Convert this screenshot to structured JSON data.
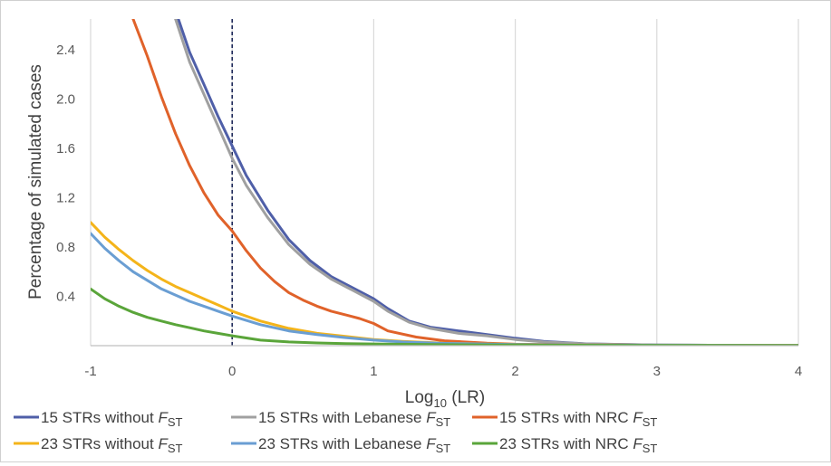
{
  "chart_data": {
    "type": "line",
    "title": "",
    "xlabel": {
      "base": "Log",
      "sub": "10",
      "rest": " (LR)"
    },
    "ylabel": "Percentage of simulated cases",
    "xlim": [
      -1,
      4
    ],
    "ylim": [
      0,
      2.65
    ],
    "x_ticks": [
      "-1",
      "0",
      "1",
      "2",
      "3",
      "4"
    ],
    "y_ticks": [
      "0.4",
      "0.8",
      "1.2",
      "1.6",
      "2.0",
      "2.4"
    ],
    "grid": "vertical",
    "reference_line": {
      "x": 0,
      "style": "dashed"
    },
    "series": [
      {
        "name": "15 STRs without F_ST",
        "label": "15 STRs without ",
        "fst_base": "F",
        "fst_sub": "ST",
        "color": "#4f5fa8",
        "x": [
          -0.38,
          -0.3,
          -0.2,
          -0.1,
          0,
          0.1,
          0.25,
          0.4,
          0.55,
          0.7,
          0.85,
          1.0,
          1.1,
          1.25,
          1.4,
          1.6,
          1.8,
          2.0,
          2.2,
          2.5,
          3.0,
          3.5,
          4.0
        ],
        "y": [
          2.65,
          2.38,
          2.12,
          1.86,
          1.62,
          1.38,
          1.1,
          0.86,
          0.69,
          0.56,
          0.47,
          0.38,
          0.3,
          0.2,
          0.15,
          0.12,
          0.09,
          0.06,
          0.035,
          0.015,
          0.006,
          0.003,
          0.002
        ]
      },
      {
        "name": "15 STRs with Lebanese F_ST",
        "label": "15 STRs with Lebanese ",
        "fst_base": "F",
        "fst_sub": "ST",
        "color": "#a0a0a0",
        "x": [
          -0.4,
          -0.3,
          -0.2,
          -0.1,
          0,
          0.1,
          0.25,
          0.4,
          0.55,
          0.7,
          0.85,
          1.0,
          1.1,
          1.25,
          1.4,
          1.6,
          1.8,
          2.0,
          2.2,
          2.5,
          3.0,
          3.5,
          4.0
        ],
        "y": [
          2.65,
          2.3,
          2.04,
          1.78,
          1.52,
          1.3,
          1.04,
          0.82,
          0.66,
          0.54,
          0.45,
          0.36,
          0.28,
          0.19,
          0.14,
          0.1,
          0.08,
          0.05,
          0.03,
          0.014,
          0.006,
          0.003,
          0.002
        ]
      },
      {
        "name": "15 STRs with NRC F_ST",
        "label": "15 STRs with NRC ",
        "fst_base": "F",
        "fst_sub": "ST",
        "color": "#e0622a",
        "x": [
          -0.7,
          -0.6,
          -0.5,
          -0.4,
          -0.3,
          -0.2,
          -0.1,
          0,
          0.1,
          0.2,
          0.3,
          0.4,
          0.5,
          0.6,
          0.7,
          0.8,
          0.9,
          1.0,
          1.1,
          1.3,
          1.5,
          1.8,
          2.0,
          2.3,
          2.6,
          3.0,
          3.5,
          4.0
        ],
        "y": [
          2.65,
          2.35,
          2.02,
          1.72,
          1.46,
          1.24,
          1.06,
          0.93,
          0.77,
          0.63,
          0.52,
          0.43,
          0.37,
          0.32,
          0.28,
          0.25,
          0.22,
          0.18,
          0.12,
          0.07,
          0.04,
          0.02,
          0.012,
          0.008,
          0.005,
          0.003,
          0.002,
          0.001
        ]
      },
      {
        "name": "23 STRs without F_ST",
        "label": "23 STRs without ",
        "fst_base": "F",
        "fst_sub": "ST",
        "color": "#f4b41a",
        "x": [
          -1.0,
          -0.9,
          -0.8,
          -0.7,
          -0.6,
          -0.5,
          -0.4,
          -0.3,
          -0.2,
          -0.1,
          0,
          0.2,
          0.4,
          0.6,
          0.8,
          1.0,
          1.2,
          1.5,
          2.0,
          2.5,
          3.0,
          4.0
        ],
        "y": [
          1.0,
          0.88,
          0.78,
          0.69,
          0.61,
          0.54,
          0.48,
          0.43,
          0.38,
          0.33,
          0.28,
          0.2,
          0.14,
          0.1,
          0.075,
          0.05,
          0.035,
          0.02,
          0.01,
          0.005,
          0.003,
          0.001
        ]
      },
      {
        "name": "23 STRs with Lebanese F_ST",
        "label": "23 STRs with Lebanese ",
        "fst_base": "F",
        "fst_sub": "ST",
        "color": "#6a9ed3",
        "x": [
          -1.0,
          -0.9,
          -0.8,
          -0.7,
          -0.6,
          -0.5,
          -0.4,
          -0.3,
          -0.2,
          -0.1,
          0,
          0.2,
          0.4,
          0.6,
          0.8,
          1.0,
          1.2,
          1.5,
          2.0,
          2.5,
          3.0,
          4.0
        ],
        "y": [
          0.91,
          0.79,
          0.69,
          0.6,
          0.53,
          0.46,
          0.41,
          0.36,
          0.32,
          0.28,
          0.24,
          0.17,
          0.12,
          0.09,
          0.065,
          0.045,
          0.03,
          0.018,
          0.009,
          0.005,
          0.003,
          0.001
        ]
      },
      {
        "name": "23 STRs with NRC F_ST",
        "label": "23 STRs with NRC ",
        "fst_base": "F",
        "fst_sub": "ST",
        "color": "#5aa53a",
        "x": [
          -1.0,
          -0.9,
          -0.8,
          -0.7,
          -0.6,
          -0.5,
          -0.4,
          -0.3,
          -0.2,
          -0.1,
          0,
          0.2,
          0.4,
          0.6,
          0.8,
          1.0,
          1.5,
          2.0,
          3.0,
          4.0
        ],
        "y": [
          0.46,
          0.38,
          0.32,
          0.27,
          0.23,
          0.2,
          0.17,
          0.145,
          0.12,
          0.1,
          0.08,
          0.045,
          0.03,
          0.022,
          0.017,
          0.014,
          0.008,
          0.005,
          0.002,
          0.001
        ]
      }
    ]
  }
}
